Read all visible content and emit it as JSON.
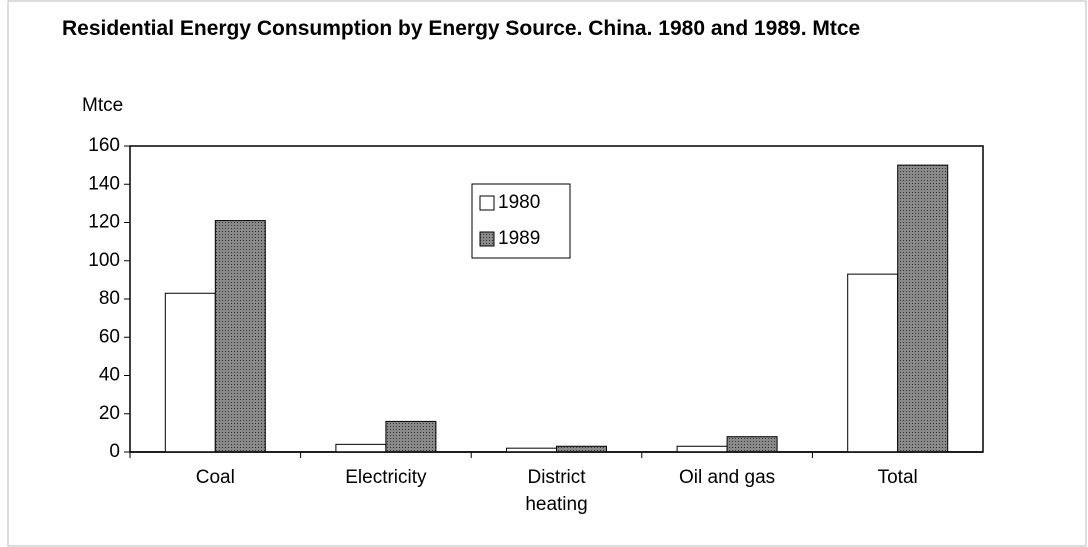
{
  "chart_data": {
    "type": "bar",
    "title": "Residential Energy Consumption by Energy Source. China. 1980 and 1989. Mtce",
    "y_label": "Mtce",
    "categories": [
      "Coal",
      "Electricity",
      "District heating",
      "Oil and gas",
      "Total"
    ],
    "series": [
      {
        "name": "1980",
        "color": "#ffffff",
        "values": [
          83,
          4,
          2,
          3,
          93
        ]
      },
      {
        "name": "1989",
        "color": "#6e6e6e",
        "values": [
          121,
          16,
          3,
          8,
          150
        ]
      }
    ],
    "ylim": [
      0,
      160
    ],
    "yticks": [
      0,
      20,
      40,
      60,
      80,
      100,
      120,
      140,
      160
    ],
    "grid": false,
    "legend_position": "top"
  }
}
